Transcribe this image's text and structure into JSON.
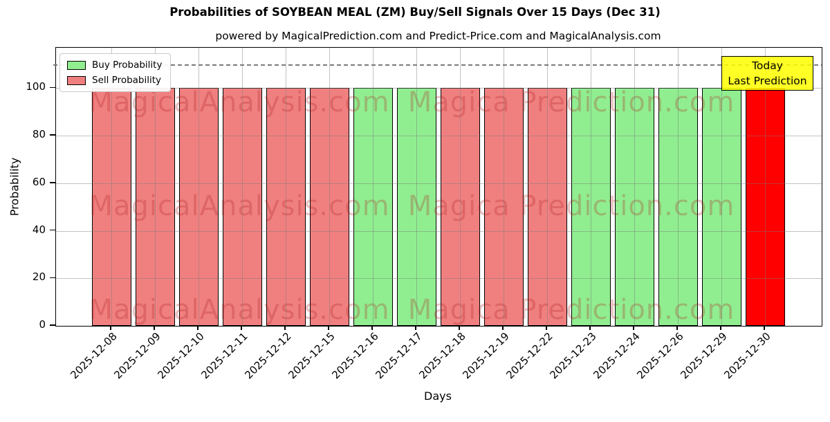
{
  "chart_data": {
    "type": "bar",
    "title": "Probabilities of SOYBEAN MEAL (ZM) Buy/Sell Signals Over 15 Days (Dec 31)",
    "subtitle": "powered by MagicalPrediction.com and Predict-Price.com and MagicalAnalysis.com",
    "xlabel": "Days",
    "ylabel": "Probability",
    "categories": [
      "2025-12-08",
      "2025-12-09",
      "2025-12-10",
      "2025-12-11",
      "2025-12-12",
      "2025-12-15",
      "2025-12-16",
      "2025-12-17",
      "2025-12-18",
      "2025-12-19",
      "2025-12-22",
      "2025-12-23",
      "2025-12-24",
      "2025-12-26",
      "2025-12-29",
      "2025-12-30"
    ],
    "values": [
      100,
      100,
      100,
      100,
      100,
      100,
      100,
      100,
      100,
      100,
      100,
      100,
      100,
      100,
      100,
      100
    ],
    "signals": [
      "sell",
      "sell",
      "sell",
      "sell",
      "sell",
      "sell",
      "buy",
      "buy",
      "sell",
      "sell",
      "sell",
      "buy",
      "buy",
      "buy",
      "buy",
      "today"
    ],
    "yticks": [
      0,
      20,
      40,
      60,
      80,
      100
    ],
    "ylim": [
      0,
      117
    ],
    "dashed_line_y": 110,
    "grid": true,
    "colors": {
      "buy": "#90EE90",
      "sell": "#F08080",
      "today": "#FF0000"
    },
    "legend": {
      "position": "upper left",
      "entries": [
        {
          "label": "Buy Probability",
          "color": "#90EE90"
        },
        {
          "label": "Sell Probability",
          "color": "#F08080"
        }
      ]
    },
    "annotation": {
      "lines": [
        "Today",
        "Last Prediction"
      ],
      "bg": "#FFFF00"
    },
    "watermarks": {
      "left": "MagicalAnalysis.com",
      "right": "Magica Prediction.com",
      "rows": 3
    }
  }
}
